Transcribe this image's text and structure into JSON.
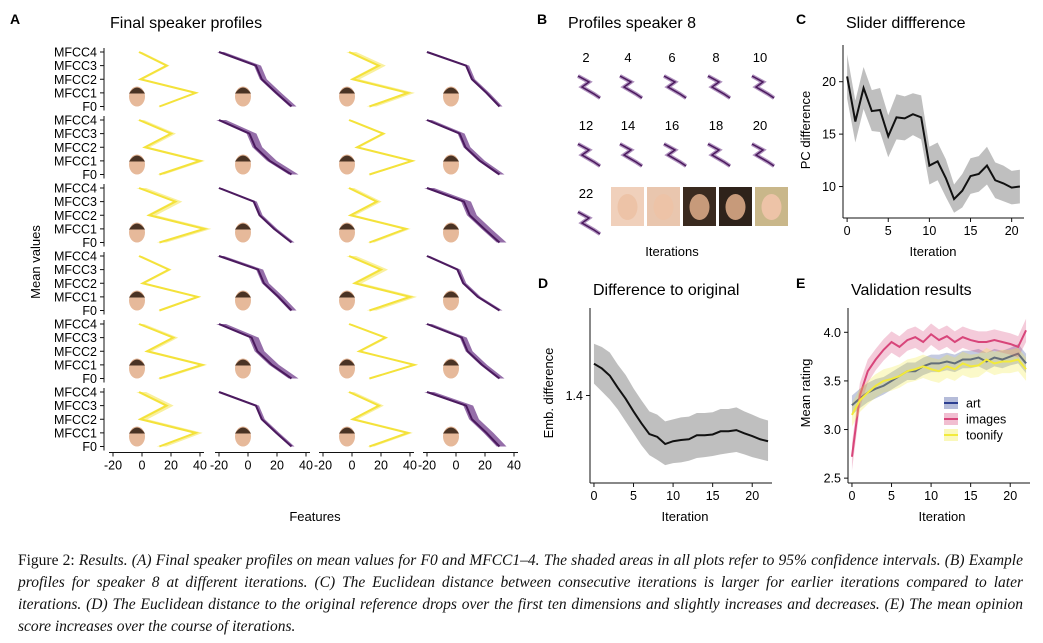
{
  "colors": {
    "purple": "#4b1a5e",
    "purple_band": "#7b4a93",
    "yellow": "#f4e23a",
    "yellow_band": "#f7ec86",
    "gray_band": "#b8b8b8",
    "black": "#111111",
    "art": "#2c3f91",
    "images": "#d8457a",
    "toonify": "#f2ea3c"
  },
  "panelA": {
    "letter": "A",
    "title": "Final speaker profiles",
    "ylabel": "Mean values",
    "xlabel": "Features",
    "row_labels": [
      "MFCC4",
      "MFCC3",
      "MFCC2",
      "MFCC1",
      "F0"
    ],
    "xticks": [
      "-20",
      "0",
      "20",
      "40",
      "-20",
      "0",
      "20",
      "40",
      "-20",
      "0",
      "20",
      "40",
      "-20",
      "0",
      "20",
      "40"
    ],
    "grid": [
      [
        "yellow",
        "purple",
        "yellow",
        "purple"
      ],
      [
        "yellow",
        "purple",
        "yellow",
        "purple"
      ],
      [
        "yellow",
        "purple",
        "yellow",
        "purple"
      ],
      [
        "yellow",
        "purple",
        "yellow",
        "purple"
      ],
      [
        "yellow",
        "purple",
        "yellow",
        "purple"
      ],
      [
        "yellow",
        "purple",
        "yellow",
        "purple"
      ]
    ],
    "profiles": {
      "yellow": [
        -2,
        20,
        2,
        40,
        12
      ],
      "purple": [
        -20,
        4,
        8,
        18,
        30
      ]
    }
  },
  "panelB": {
    "letter": "B",
    "title": "Profiles speaker 8",
    "xlabel": "Iterations",
    "iterations": [
      "2",
      "4",
      "6",
      "8",
      "10",
      "12",
      "14",
      "16",
      "18",
      "20",
      "22"
    ]
  },
  "chart_data": [
    {
      "panel": "C",
      "type": "line",
      "title": "Slider diffference",
      "xlabel": "Iteration",
      "ylabel": "PC difference",
      "xlim": [
        -0.5,
        21.5
      ],
      "ylim": [
        7,
        23.5
      ],
      "xticks": [
        0,
        5,
        10,
        15,
        20
      ],
      "yticks": [
        10,
        15,
        20
      ],
      "x": [
        0,
        1,
        2,
        3,
        4,
        5,
        6,
        7,
        8,
        9,
        10,
        11,
        12,
        13,
        14,
        15,
        16,
        17,
        18,
        19,
        20,
        21
      ],
      "series": [
        {
          "values": [
            20.5,
            16.2,
            19.4,
            17.2,
            17.3,
            14.8,
            16.6,
            16.5,
            16.9,
            16.6,
            12.0,
            12.4,
            10.8,
            8.8,
            9.6,
            11.0,
            11.2,
            12.0,
            10.6,
            10.3,
            9.9,
            10.0
          ],
          "lower": [
            18.4,
            14.2,
            17.4,
            15.3,
            15.2,
            12.8,
            14.5,
            14.4,
            14.9,
            14.5,
            10.2,
            10.6,
            9.0,
            7.5,
            8.0,
            9.3,
            9.5,
            10.2,
            8.9,
            8.6,
            8.3,
            8.4
          ],
          "upper": [
            22.6,
            18.2,
            21.4,
            19.2,
            19.4,
            16.8,
            18.8,
            18.6,
            18.9,
            18.7,
            13.8,
            14.2,
            12.6,
            10.2,
            11.2,
            12.7,
            12.9,
            13.8,
            12.3,
            12.0,
            11.5,
            11.6
          ]
        }
      ]
    },
    {
      "panel": "D",
      "type": "line",
      "title": "Difference to original",
      "xlabel": "Iteration",
      "ylabel": "Emb. difference",
      "xlim": [
        -0.5,
        22.5
      ],
      "ylim": [
        1.18,
        1.62
      ],
      "xticks": [
        0,
        5,
        10,
        15,
        20
      ],
      "yticks": [
        1.4
      ],
      "x": [
        0,
        1,
        2,
        3,
        4,
        5,
        6,
        7,
        8,
        9,
        10,
        11,
        12,
        13,
        14,
        15,
        16,
        17,
        18,
        19,
        20,
        21,
        22
      ],
      "series": [
        {
          "values": [
            1.48,
            1.468,
            1.45,
            1.42,
            1.392,
            1.36,
            1.33,
            1.303,
            1.296,
            1.278,
            1.285,
            1.288,
            1.29,
            1.3,
            1.3,
            1.302,
            1.31,
            1.31,
            1.313,
            1.305,
            1.298,
            1.29,
            1.285
          ],
          "lower": [
            1.43,
            1.41,
            1.39,
            1.365,
            1.335,
            1.305,
            1.275,
            1.25,
            1.238,
            1.225,
            1.23,
            1.232,
            1.236,
            1.243,
            1.245,
            1.248,
            1.252,
            1.255,
            1.258,
            1.252,
            1.245,
            1.24,
            1.235
          ],
          "upper": [
            1.53,
            1.522,
            1.508,
            1.478,
            1.452,
            1.418,
            1.388,
            1.36,
            1.352,
            1.335,
            1.34,
            1.345,
            1.347,
            1.356,
            1.356,
            1.358,
            1.366,
            1.366,
            1.37,
            1.36,
            1.352,
            1.343,
            1.337
          ]
        }
      ]
    },
    {
      "panel": "E",
      "type": "line",
      "title": "Validation results",
      "xlabel": "Iteration",
      "ylabel": "Mean rating",
      "xlim": [
        -0.5,
        22.5
      ],
      "ylim": [
        2.45,
        4.25
      ],
      "xticks": [
        0,
        5,
        10,
        15,
        20
      ],
      "yticks": [
        2.5,
        3.0,
        3.5,
        4.0
      ],
      "legend": "right",
      "x": [
        0,
        1,
        2,
        3,
        4,
        5,
        6,
        7,
        8,
        9,
        10,
        11,
        12,
        13,
        14,
        15,
        16,
        17,
        18,
        19,
        20,
        21,
        22
      ],
      "series": [
        {
          "name": "art",
          "color": "#2c3f91",
          "values": [
            3.25,
            3.32,
            3.38,
            3.42,
            3.45,
            3.5,
            3.55,
            3.6,
            3.6,
            3.65,
            3.68,
            3.68,
            3.7,
            3.68,
            3.72,
            3.72,
            3.74,
            3.7,
            3.74,
            3.72,
            3.75,
            3.78,
            3.68
          ],
          "lower": [
            3.15,
            3.22,
            3.28,
            3.32,
            3.36,
            3.41,
            3.46,
            3.51,
            3.51,
            3.56,
            3.59,
            3.59,
            3.61,
            3.59,
            3.63,
            3.63,
            3.65,
            3.61,
            3.65,
            3.63,
            3.66,
            3.68,
            3.58
          ],
          "upper": [
            3.35,
            3.42,
            3.48,
            3.52,
            3.54,
            3.59,
            3.64,
            3.69,
            3.69,
            3.74,
            3.77,
            3.77,
            3.79,
            3.77,
            3.81,
            3.81,
            3.83,
            3.79,
            3.83,
            3.81,
            3.84,
            3.88,
            3.78
          ]
        },
        {
          "name": "images",
          "color": "#d8457a",
          "values": [
            2.72,
            3.35,
            3.6,
            3.72,
            3.82,
            3.9,
            3.85,
            3.92,
            3.95,
            3.9,
            3.98,
            3.92,
            3.96,
            3.9,
            3.95,
            3.92,
            3.9,
            3.9,
            3.92,
            3.9,
            3.88,
            3.85,
            4.02
          ],
          "lower": [
            2.58,
            3.22,
            3.48,
            3.61,
            3.71,
            3.79,
            3.74,
            3.81,
            3.84,
            3.79,
            3.87,
            3.81,
            3.85,
            3.79,
            3.84,
            3.81,
            3.79,
            3.79,
            3.81,
            3.79,
            3.77,
            3.74,
            3.9
          ],
          "upper": [
            2.86,
            3.48,
            3.72,
            3.83,
            3.93,
            4.01,
            3.96,
            4.03,
            4.06,
            4.01,
            4.09,
            4.03,
            4.07,
            4.01,
            4.06,
            4.03,
            4.01,
            4.01,
            4.03,
            4.01,
            3.99,
            3.96,
            4.14
          ]
        },
        {
          "name": "toonify",
          "color": "#f2ea3c",
          "values": [
            3.15,
            3.3,
            3.38,
            3.45,
            3.5,
            3.52,
            3.55,
            3.6,
            3.62,
            3.65,
            3.62,
            3.6,
            3.65,
            3.62,
            3.68,
            3.65,
            3.66,
            3.72,
            3.68,
            3.7,
            3.7,
            3.72,
            3.62
          ],
          "lower": [
            3.03,
            3.18,
            3.26,
            3.33,
            3.38,
            3.4,
            3.43,
            3.48,
            3.5,
            3.53,
            3.5,
            3.48,
            3.53,
            3.5,
            3.56,
            3.53,
            3.54,
            3.6,
            3.56,
            3.58,
            3.58,
            3.6,
            3.5
          ],
          "upper": [
            3.27,
            3.42,
            3.5,
            3.57,
            3.62,
            3.64,
            3.67,
            3.72,
            3.74,
            3.77,
            3.74,
            3.72,
            3.77,
            3.74,
            3.8,
            3.77,
            3.78,
            3.84,
            3.8,
            3.82,
            3.82,
            3.84,
            3.74
          ]
        }
      ]
    }
  ],
  "caption": {
    "prefix": "Figure 2: ",
    "text": "Results. (A) Final speaker profiles on mean values for F0 and MFCC1–4. The shaded areas in all plots refer to 95% confidence intervals. (B) Example profiles for speaker 8 at different iterations. (C) The Euclidean distance between consecutive iterations is larger for earlier iterations compared to later iterations. (D) The Euclidean distance to the original reference drops over the first ten dimensions and slightly increases and decreases. (E) The mean opinion score increases over the course of iterations."
  }
}
